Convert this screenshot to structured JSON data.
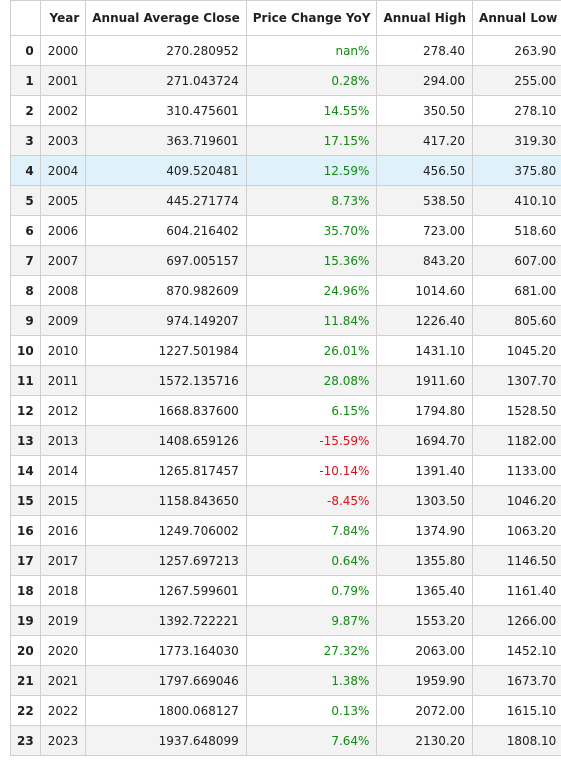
{
  "table": {
    "headers": [
      "",
      "Year",
      "Annual Average Close",
      "Price Change YoY",
      "Annual High",
      "Annual Low"
    ],
    "highlighted_row": 4,
    "colors": {
      "positive": "#108a10",
      "negative": "#e0101a",
      "highlight": "#dff1fb"
    },
    "rows": [
      {
        "index": "0",
        "year": "2000",
        "avg_close": "270.280952",
        "change": "nan%",
        "sign": "pos",
        "high": "278.40",
        "low": "263.90"
      },
      {
        "index": "1",
        "year": "2001",
        "avg_close": "271.043724",
        "change": "0.28%",
        "sign": "pos",
        "high": "294.00",
        "low": "255.00"
      },
      {
        "index": "2",
        "year": "2002",
        "avg_close": "310.475601",
        "change": "14.55%",
        "sign": "pos",
        "high": "350.50",
        "low": "278.10"
      },
      {
        "index": "3",
        "year": "2003",
        "avg_close": "363.719601",
        "change": "17.15%",
        "sign": "pos",
        "high": "417.20",
        "low": "319.30"
      },
      {
        "index": "4",
        "year": "2004",
        "avg_close": "409.520481",
        "change": "12.59%",
        "sign": "pos",
        "high": "456.50",
        "low": "375.80"
      },
      {
        "index": "5",
        "year": "2005",
        "avg_close": "445.271774",
        "change": "8.73%",
        "sign": "pos",
        "high": "538.50",
        "low": "410.10"
      },
      {
        "index": "6",
        "year": "2006",
        "avg_close": "604.216402",
        "change": "35.70%",
        "sign": "pos",
        "high": "723.00",
        "low": "518.60"
      },
      {
        "index": "7",
        "year": "2007",
        "avg_close": "697.005157",
        "change": "15.36%",
        "sign": "pos",
        "high": "843.20",
        "low": "607.00"
      },
      {
        "index": "8",
        "year": "2008",
        "avg_close": "870.982609",
        "change": "24.96%",
        "sign": "pos",
        "high": "1014.60",
        "low": "681.00"
      },
      {
        "index": "9",
        "year": "2009",
        "avg_close": "974.149207",
        "change": "11.84%",
        "sign": "pos",
        "high": "1226.40",
        "low": "805.60"
      },
      {
        "index": "10",
        "year": "2010",
        "avg_close": "1227.501984",
        "change": "26.01%",
        "sign": "pos",
        "high": "1431.10",
        "low": "1045.20"
      },
      {
        "index": "11",
        "year": "2011",
        "avg_close": "1572.135716",
        "change": "28.08%",
        "sign": "pos",
        "high": "1911.60",
        "low": "1307.70"
      },
      {
        "index": "12",
        "year": "2012",
        "avg_close": "1668.837600",
        "change": "6.15%",
        "sign": "pos",
        "high": "1794.80",
        "low": "1528.50"
      },
      {
        "index": "13",
        "year": "2013",
        "avg_close": "1408.659126",
        "change": "-15.59%",
        "sign": "neg",
        "high": "1694.70",
        "low": "1182.00"
      },
      {
        "index": "14",
        "year": "2014",
        "avg_close": "1265.817457",
        "change": "-10.14%",
        "sign": "neg",
        "high": "1391.40",
        "low": "1133.00"
      },
      {
        "index": "15",
        "year": "2015",
        "avg_close": "1158.843650",
        "change": "-8.45%",
        "sign": "neg",
        "high": "1303.50",
        "low": "1046.20"
      },
      {
        "index": "16",
        "year": "2016",
        "avg_close": "1249.706002",
        "change": "7.84%",
        "sign": "pos",
        "high": "1374.90",
        "low": "1063.20"
      },
      {
        "index": "17",
        "year": "2017",
        "avg_close": "1257.697213",
        "change": "0.64%",
        "sign": "pos",
        "high": "1355.80",
        "low": "1146.50"
      },
      {
        "index": "18",
        "year": "2018",
        "avg_close": "1267.599601",
        "change": "0.79%",
        "sign": "pos",
        "high": "1365.40",
        "low": "1161.40"
      },
      {
        "index": "19",
        "year": "2019",
        "avg_close": "1392.722221",
        "change": "9.87%",
        "sign": "pos",
        "high": "1553.20",
        "low": "1266.00"
      },
      {
        "index": "20",
        "year": "2020",
        "avg_close": "1773.164030",
        "change": "27.32%",
        "sign": "pos",
        "high": "2063.00",
        "low": "1452.10"
      },
      {
        "index": "21",
        "year": "2021",
        "avg_close": "1797.669046",
        "change": "1.38%",
        "sign": "pos",
        "high": "1959.90",
        "low": "1673.70"
      },
      {
        "index": "22",
        "year": "2022",
        "avg_close": "1800.068127",
        "change": "0.13%",
        "sign": "pos",
        "high": "2072.00",
        "low": "1615.10"
      },
      {
        "index": "23",
        "year": "2023",
        "avg_close": "1937.648099",
        "change": "7.64%",
        "sign": "pos",
        "high": "2130.20",
        "low": "1808.10"
      }
    ]
  }
}
